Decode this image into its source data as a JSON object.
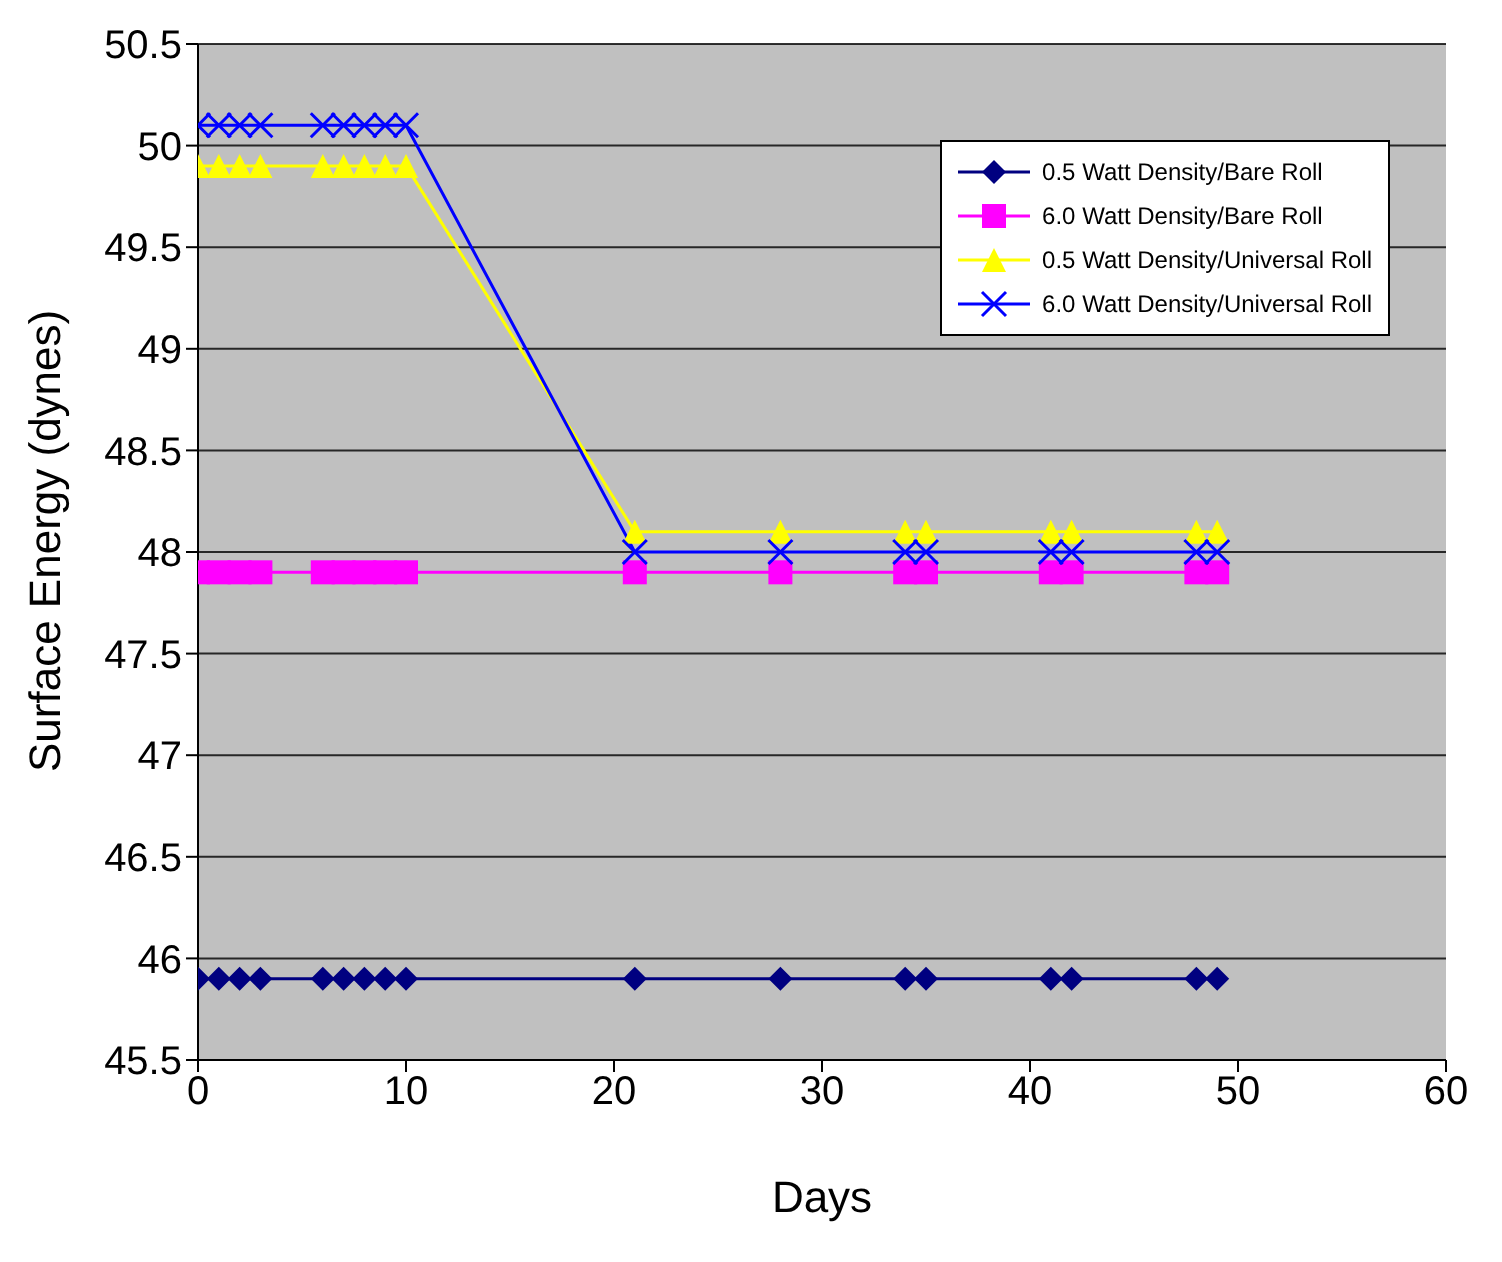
{
  "chart_data": {
    "type": "line",
    "xlabel": "Days",
    "ylabel": "Surface Energy (dynes)",
    "x": [
      0,
      1,
      2,
      3,
      6,
      7,
      8,
      9,
      10,
      21,
      28,
      34,
      35,
      41,
      42,
      48,
      49
    ],
    "series": [
      {
        "name": "0.5 Watt Density/Bare Roll",
        "color": "#000080",
        "marker": "diamond",
        "values": [
          45.9,
          45.9,
          45.9,
          45.9,
          45.9,
          45.9,
          45.9,
          45.9,
          45.9,
          45.9,
          45.9,
          45.9,
          45.9,
          45.9,
          45.9,
          45.9,
          45.9
        ]
      },
      {
        "name": "6.0 Watt Density/Bare Roll",
        "color": "#ff00ff",
        "marker": "square",
        "values": [
          47.9,
          47.9,
          47.9,
          47.9,
          47.9,
          47.9,
          47.9,
          47.9,
          47.9,
          47.9,
          47.9,
          47.9,
          47.9,
          47.9,
          47.9,
          47.9,
          47.9
        ]
      },
      {
        "name": "0.5 Watt Density/Universal Roll",
        "color": "#ffff00",
        "marker": "triangle",
        "values": [
          49.9,
          49.9,
          49.9,
          49.9,
          49.9,
          49.9,
          49.9,
          49.9,
          49.9,
          48.1,
          48.1,
          48.1,
          48.1,
          48.1,
          48.1,
          48.1,
          48.1
        ]
      },
      {
        "name": "6.0 Watt Density/Universal Roll",
        "color": "#0000ff",
        "marker": "cross",
        "values": [
          50.1,
          50.1,
          50.1,
          50.1,
          50.1,
          50.1,
          50.1,
          50.1,
          50.1,
          48,
          48,
          48,
          48,
          48,
          48,
          48,
          48
        ]
      }
    ],
    "xlim": [
      0,
      60
    ],
    "xticks": [
      0,
      10,
      20,
      30,
      40,
      50,
      60
    ],
    "ylim": [
      45.5,
      50.5
    ],
    "yticks": [
      45.5,
      46,
      46.5,
      47,
      47.5,
      48,
      48.5,
      49,
      49.5,
      50,
      50.5
    ],
    "grid": "y",
    "legend": "top right"
  }
}
